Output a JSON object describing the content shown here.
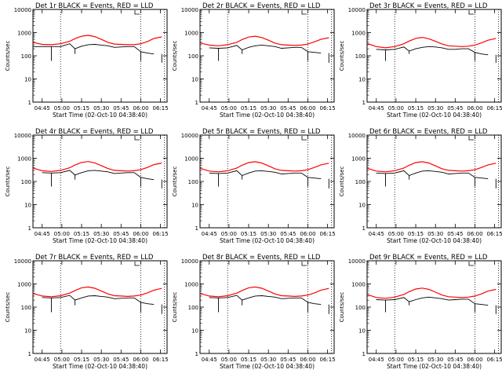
{
  "figure": {
    "colors": {
      "events": "#000000",
      "lld": "#ff0000",
      "axes": "#000000"
    }
  },
  "shared_axes": {
    "xlabel": "Start Time (02-Oct-10 04:38:40)",
    "ylabel": "Counts/sec",
    "x_tick_labels": [
      "04:45",
      "05:00",
      "05:15",
      "05:30",
      "05:45",
      "06:00",
      "06:15"
    ],
    "y_tick_labels": [
      "1",
      "10",
      "100",
      "1000",
      "10000"
    ],
    "ylim": [
      1,
      10000
    ],
    "yscale": "log",
    "vertical_dotted_markers_note": "dotted vertical lines at ~04:59, ~06:00 and ~06:18 (approx.)"
  },
  "chart_data": [
    {
      "type": "line",
      "title": "Det 1r BLACK = Events, RED = LLD",
      "xlabel": "Start Time (02-Oct-10 04:38:40)",
      "ylabel": "Counts/sec",
      "yscale": "log",
      "ylim": [
        1,
        10000
      ],
      "xlim": [
        "04:38",
        "06:20"
      ],
      "x": [
        "04:38",
        "04:45",
        "04:52",
        "04:59",
        "05:06",
        "05:10",
        "05:15",
        "05:20",
        "05:25",
        "05:30",
        "05:35",
        "05:40",
        "05:45",
        "05:50",
        "05:55",
        "06:00",
        "06:05",
        "06:10",
        "06:16"
      ],
      "series": [
        {
          "name": "BLACK = Events",
          "values": [
            250,
            250,
            250,
            250,
            330,
            200,
            260,
            300,
            310,
            290,
            270,
            230,
            240,
            250,
            250,
            150,
            130,
            120,
            null
          ]
        },
        {
          "name": "RED = LLD",
          "values": [
            380,
            310,
            300,
            330,
            420,
            550,
            700,
            760,
            670,
            510,
            380,
            320,
            310,
            300,
            300,
            330,
            410,
            560,
            650
          ]
        }
      ]
    },
    {
      "type": "line",
      "title": "Det 2r BLACK = Events, RED = LLD",
      "xlabel": "Start Time (02-Oct-10 04:38:40)",
      "ylabel": "Counts/sec",
      "yscale": "log",
      "ylim": [
        1,
        10000
      ],
      "xlim": [
        "04:38",
        "06:20"
      ],
      "x": [
        "04:38",
        "04:45",
        "04:52",
        "04:59",
        "05:06",
        "05:10",
        "05:15",
        "05:20",
        "05:25",
        "05:30",
        "05:35",
        "05:40",
        "05:45",
        "05:50",
        "05:55",
        "06:00",
        "06:05",
        "06:10",
        "06:16"
      ],
      "series": [
        {
          "name": "BLACK = Events",
          "values": [
            null,
            220,
            210,
            220,
            280,
            180,
            230,
            270,
            290,
            270,
            250,
            210,
            220,
            230,
            230,
            150,
            140,
            130,
            null
          ]
        },
        {
          "name": "RED = LLD",
          "values": [
            360,
            290,
            270,
            300,
            380,
            500,
            640,
            700,
            610,
            470,
            350,
            300,
            290,
            280,
            290,
            320,
            400,
            510,
            600
          ]
        }
      ]
    },
    {
      "type": "line",
      "title": "Det 3r BLACK = Events, RED = LLD",
      "xlabel": "Start Time (02-Oct-10 04:38:40)",
      "ylabel": "Counts/sec",
      "yscale": "log",
      "ylim": [
        1,
        10000
      ],
      "xlim": [
        "04:38",
        "06:20"
      ],
      "x": [
        "04:38",
        "04:45",
        "04:52",
        "04:59",
        "05:06",
        "05:10",
        "05:15",
        "05:20",
        "05:25",
        "05:30",
        "05:35",
        "05:40",
        "05:45",
        "05:50",
        "05:55",
        "06:00",
        "06:05",
        "06:10",
        "06:16"
      ],
      "series": [
        {
          "name": "BLACK = Events",
          "values": [
            null,
            190,
            180,
            190,
            240,
            160,
            200,
            230,
            250,
            240,
            220,
            190,
            190,
            200,
            200,
            140,
            120,
            110,
            null
          ]
        },
        {
          "name": "RED = LLD",
          "values": [
            340,
            250,
            220,
            250,
            330,
            430,
            560,
            620,
            540,
            420,
            320,
            270,
            260,
            250,
            260,
            290,
            360,
            470,
            560
          ]
        }
      ]
    },
    {
      "type": "line",
      "title": "Det 4r BLACK = Events, RED = LLD",
      "xlabel": "Start Time (02-Oct-10 04:38:40)",
      "ylabel": "Counts/sec",
      "yscale": "log",
      "ylim": [
        1,
        10000
      ],
      "xlim": [
        "04:38",
        "06:20"
      ],
      "x": [
        "04:38",
        "04:45",
        "04:52",
        "04:59",
        "05:06",
        "05:10",
        "05:15",
        "05:20",
        "05:25",
        "05:30",
        "05:35",
        "05:40",
        "05:45",
        "05:50",
        "05:55",
        "06:00",
        "06:05",
        "06:10",
        "06:16"
      ],
      "series": [
        {
          "name": "BLACK = Events",
          "values": [
            null,
            240,
            230,
            240,
            300,
            190,
            240,
            290,
            300,
            280,
            260,
            220,
            230,
            240,
            240,
            150,
            130,
            120,
            null
          ]
        },
        {
          "name": "RED = LLD",
          "values": [
            380,
            290,
            270,
            300,
            390,
            510,
            660,
            720,
            630,
            480,
            360,
            300,
            290,
            280,
            290,
            320,
            400,
            530,
            620
          ]
        }
      ]
    },
    {
      "type": "line",
      "title": "Det 5r BLACK = Events, RED = LLD",
      "xlabel": "Start Time (02-Oct-10 04:38:40)",
      "ylabel": "Counts/sec",
      "yscale": "log",
      "ylim": [
        1,
        10000
      ],
      "xlim": [
        "04:38",
        "06:20"
      ],
      "x": [
        "04:38",
        "04:45",
        "04:52",
        "04:59",
        "05:06",
        "05:10",
        "05:15",
        "05:20",
        "05:25",
        "05:30",
        "05:35",
        "05:40",
        "05:45",
        "05:50",
        "05:55",
        "06:00",
        "06:05",
        "06:10",
        "06:16"
      ],
      "series": [
        {
          "name": "BLACK = Events",
          "values": [
            null,
            230,
            220,
            230,
            290,
            180,
            230,
            280,
            290,
            270,
            250,
            210,
            220,
            230,
            230,
            150,
            140,
            130,
            null
          ]
        },
        {
          "name": "RED = LLD",
          "values": [
            370,
            280,
            260,
            290,
            380,
            500,
            650,
            710,
            620,
            470,
            350,
            300,
            290,
            280,
            290,
            320,
            400,
            520,
            610
          ]
        }
      ]
    },
    {
      "type": "line",
      "title": "Det 6r BLACK = Events, RED = LLD",
      "xlabel": "Start Time (02-Oct-10 04:38:40)",
      "ylabel": "Counts/sec",
      "yscale": "log",
      "ylim": [
        1,
        10000
      ],
      "xlim": [
        "04:38",
        "06:20"
      ],
      "x": [
        "04:38",
        "04:45",
        "04:52",
        "04:59",
        "05:06",
        "05:10",
        "05:15",
        "05:20",
        "05:25",
        "05:30",
        "05:35",
        "05:40",
        "05:45",
        "05:50",
        "05:55",
        "06:00",
        "06:05",
        "06:10",
        "06:16"
      ],
      "series": [
        {
          "name": "BLACK = Events",
          "values": [
            null,
            230,
            220,
            230,
            290,
            180,
            230,
            280,
            290,
            270,
            250,
            210,
            220,
            230,
            230,
            150,
            140,
            130,
            null
          ]
        },
        {
          "name": "RED = LLD",
          "values": [
            370,
            280,
            260,
            290,
            380,
            500,
            650,
            710,
            620,
            470,
            350,
            300,
            290,
            280,
            290,
            320,
            400,
            520,
            610
          ]
        }
      ]
    },
    {
      "type": "line",
      "title": "Det 7r BLACK = Events, RED = LLD",
      "xlabel": "Start Time (02-Oct-10 04:38:40)",
      "ylabel": "Counts/sec",
      "yscale": "log",
      "ylim": [
        1,
        10000
      ],
      "xlim": [
        "04:38",
        "06:20"
      ],
      "x": [
        "04:38",
        "04:45",
        "04:52",
        "04:59",
        "05:06",
        "05:10",
        "05:15",
        "05:20",
        "05:25",
        "05:30",
        "05:35",
        "05:40",
        "05:45",
        "05:50",
        "05:55",
        "06:00",
        "06:05",
        "06:10",
        "06:16"
      ],
      "series": [
        {
          "name": "BLACK = Events",
          "values": [
            null,
            260,
            250,
            260,
            320,
            200,
            250,
            300,
            310,
            290,
            270,
            230,
            240,
            250,
            250,
            160,
            140,
            130,
            null
          ]
        },
        {
          "name": "RED = LLD",
          "values": [
            390,
            300,
            280,
            310,
            400,
            520,
            680,
            740,
            650,
            490,
            370,
            310,
            300,
            290,
            300,
            330,
            410,
            540,
            640
          ]
        }
      ]
    },
    {
      "type": "line",
      "title": "Det 8r BLACK = Events, RED = LLD",
      "xlabel": "Start Time (02-Oct-10 04:38:40)",
      "ylabel": "Counts/sec",
      "yscale": "log",
      "ylim": [
        1,
        10000
      ],
      "xlim": [
        "04:38",
        "06:20"
      ],
      "x": [
        "04:38",
        "04:45",
        "04:52",
        "04:59",
        "05:06",
        "05:10",
        "05:15",
        "05:20",
        "05:25",
        "05:30",
        "05:35",
        "05:40",
        "05:45",
        "05:50",
        "05:55",
        "06:00",
        "06:05",
        "06:10",
        "06:16"
      ],
      "series": [
        {
          "name": "BLACK = Events",
          "values": [
            null,
            260,
            250,
            260,
            320,
            200,
            250,
            300,
            310,
            290,
            270,
            230,
            240,
            250,
            250,
            160,
            140,
            130,
            null
          ]
        },
        {
          "name": "RED = LLD",
          "values": [
            390,
            300,
            280,
            310,
            400,
            520,
            680,
            740,
            650,
            490,
            370,
            310,
            300,
            290,
            300,
            330,
            410,
            540,
            640
          ]
        }
      ]
    },
    {
      "type": "line",
      "title": "Det 9r BLACK = Events, RED = LLD",
      "xlabel": "Start Time (02-Oct-10 04:38:40)",
      "ylabel": "Counts/sec",
      "yscale": "log",
      "ylim": [
        1,
        10000
      ],
      "xlim": [
        "04:38",
        "06:20"
      ],
      "x": [
        "04:38",
        "04:45",
        "04:52",
        "04:59",
        "05:06",
        "05:10",
        "05:15",
        "05:20",
        "05:25",
        "05:30",
        "05:35",
        "05:40",
        "05:45",
        "05:50",
        "05:55",
        "06:00",
        "06:05",
        "06:10",
        "06:16"
      ],
      "series": [
        {
          "name": "BLACK = Events",
          "values": [
            null,
            210,
            200,
            210,
            260,
            170,
            210,
            250,
            270,
            250,
            230,
            200,
            210,
            220,
            220,
            140,
            130,
            120,
            null
          ]
        },
        {
          "name": "RED = LLD",
          "values": [
            350,
            260,
            240,
            270,
            350,
            460,
            600,
            660,
            580,
            440,
            330,
            280,
            270,
            260,
            270,
            300,
            370,
            490,
            580
          ]
        }
      ]
    }
  ]
}
